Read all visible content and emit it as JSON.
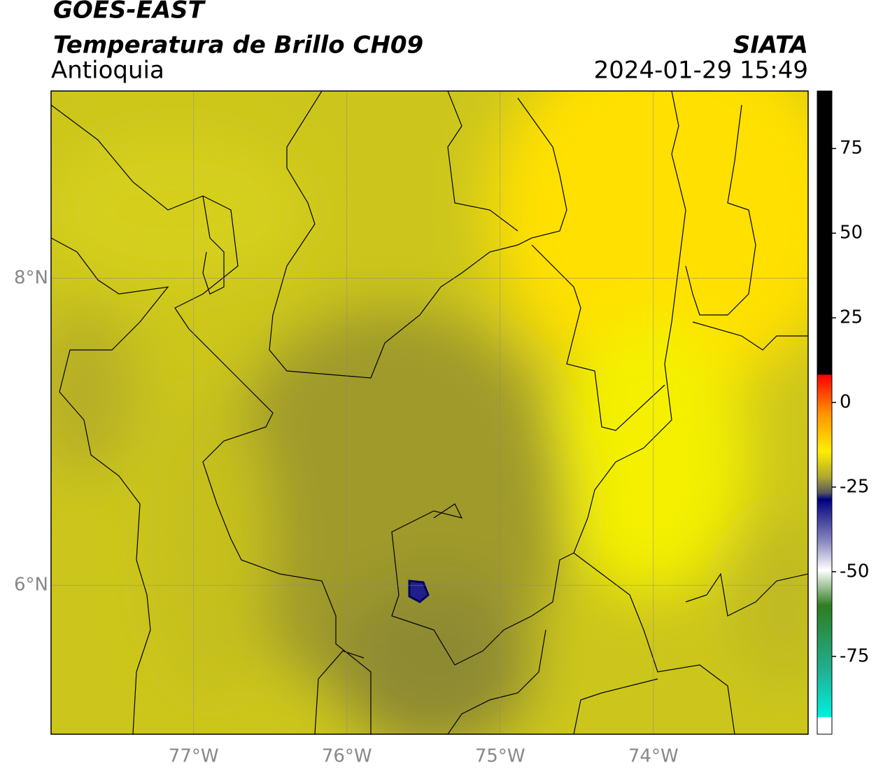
{
  "header": {
    "title": "GOES-EAST",
    "subtitle": "Temperatura de Brillo CH09",
    "region": "Antioquia",
    "source": "SIATA",
    "timestamp": "2024-01-29 15:49"
  },
  "map": {
    "lonlim": [
      -77.93,
      -72.99
    ],
    "latlim": [
      5.03,
      9.22
    ],
    "lonticks": [
      {
        "value": -77,
        "label": "77°W"
      },
      {
        "value": -76,
        "label": "76°W"
      },
      {
        "value": -75,
        "label": "75°W"
      },
      {
        "value": -74,
        "label": "74°W"
      }
    ],
    "latticks": [
      {
        "value": 8,
        "label": "8°N"
      },
      {
        "value": 6,
        "label": "6°N"
      }
    ],
    "grid": true
  },
  "colorbar": {
    "lim": [
      -98,
      92
    ],
    "ticks": [
      75,
      50,
      25,
      0,
      -25,
      -50,
      -75
    ]
  }
}
